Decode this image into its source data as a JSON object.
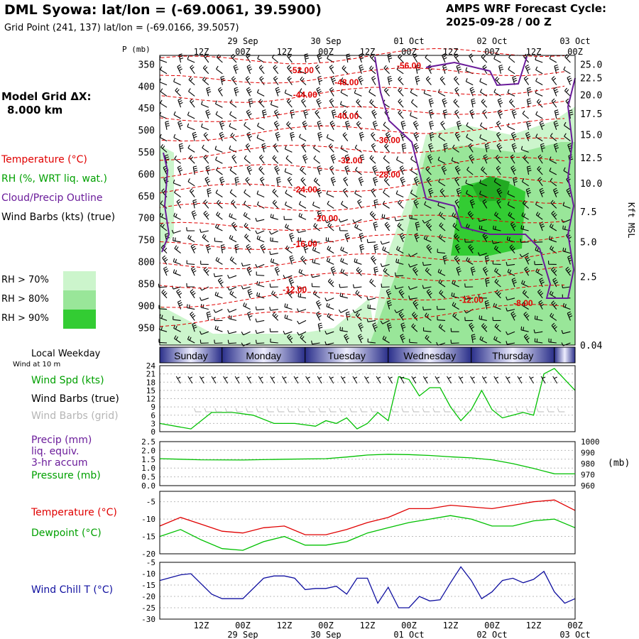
{
  "header": {
    "title": "DML Syowa:  lat/lon = (-69.0061, 39.5900)",
    "grid_point": "Grid Point (241, 137) lat/lon = (-69.0166, 39.5057)",
    "cycle_line1": "AMPS WRF Forecast Cycle:",
    "cycle_line2": "2025-09-28 / 00  Z",
    "model_grid_line1": "Model Grid ΔX:",
    "model_grid_line2": "8.000 km"
  },
  "legend": {
    "temperature": "Temperature (°C)",
    "rh": "RH (%, WRT liq. wat.)",
    "cloud": "Cloud/Precip Outline",
    "wind": "Wind Barbs (kts) (true)",
    "rh70": "RH > 70%",
    "rh80": "RH > 80%",
    "rh90": "RH > 90%",
    "local_weekday": "Local Weekday",
    "wind_at_10m": "Wind at 10 m",
    "wind_spd": "Wind Spd (kts)",
    "wind_barbs_true": "Wind Barbs (true)",
    "wind_barbs_grid": "Wind Barbs (grid)",
    "precip1": "Precip (mm)",
    "precip2": "liq. equiv.",
    "precip3": "3-hr accum",
    "pressure": "Pressure (mb)",
    "sfc_temp": "Temperature (°C)",
    "dewpoint": "Dewpoint (°C)",
    "wind_chill": "Wind Chill T (°C)"
  },
  "colors": {
    "temperature": "#e00000",
    "rh_label": "#00a000",
    "cloud": "#6a1b9a",
    "rh70": "#ccf5cc",
    "rh80": "#99e699",
    "rh90": "#33cc33",
    "series_green": "#00c000",
    "series_red": "#e00000",
    "series_blue": "#1010a0",
    "weekday_band": "#2a2f8a"
  },
  "time_axis": {
    "tick_labels": [
      "12Z",
      "00Z",
      "12Z",
      "00Z",
      "12Z",
      "00Z",
      "12Z",
      "00Z",
      "12Z",
      "00Z"
    ],
    "tick_hours": [
      12,
      24,
      36,
      48,
      60,
      72,
      84,
      96,
      108,
      120
    ],
    "date_labels": [
      {
        "text": "29 Sep",
        "hour": 24
      },
      {
        "text": "30 Sep",
        "hour": 48
      },
      {
        "text": "01 Oct",
        "hour": 72
      },
      {
        "text": "02 Oct",
        "hour": 96
      },
      {
        "text": "03 Oct",
        "hour": 120
      }
    ],
    "range": [
      0,
      120
    ]
  },
  "weekdays": [
    {
      "name": "Sunday",
      "start": 0,
      "end": 18
    },
    {
      "name": "Monday",
      "start": 18,
      "end": 42
    },
    {
      "name": "Tuesday",
      "start": 42,
      "end": 66
    },
    {
      "name": "Wednesday",
      "start": 66,
      "end": 90
    },
    {
      "name": "Thursday",
      "start": 90,
      "end": 114
    }
  ],
  "chart_data": [
    {
      "type": "heatmap",
      "title": "",
      "ylabel": "P (mb)",
      "y2label": "Kft MSL",
      "pressure_ticks": [
        350,
        400,
        450,
        500,
        550,
        600,
        650,
        700,
        750,
        800,
        850,
        900,
        950
      ],
      "ylim": [
        330,
        990
      ],
      "height_ticks": [
        {
          "label": "25.0",
          "p": 350
        },
        {
          "label": "22.5",
          "p": 381
        },
        {
          "label": "20.0",
          "p": 420
        },
        {
          "label": "17.5",
          "p": 463
        },
        {
          "label": "15.0",
          "p": 510
        },
        {
          "label": "12.5",
          "p": 563
        },
        {
          "label": "10.0",
          "p": 621
        },
        {
          "label": "7.5",
          "p": 686
        },
        {
          "label": "5.0",
          "p": 755
        },
        {
          "label": "2.5",
          "p": 834
        },
        {
          "label": "0.04",
          "p": 990
        }
      ],
      "temperature_labels": [
        {
          "text": "-56.00",
          "hour": 72,
          "p": 352
        },
        {
          "text": "-52.00",
          "hour": 41,
          "p": 362
        },
        {
          "text": "-48.00",
          "hour": 54,
          "p": 390
        },
        {
          "text": "-44.00",
          "hour": 42,
          "p": 418
        },
        {
          "text": "-40.00",
          "hour": 54,
          "p": 467
        },
        {
          "text": "-36.00",
          "hour": 66,
          "p": 522
        },
        {
          "text": "-32.00",
          "hour": 55,
          "p": 568
        },
        {
          "text": "-28.00",
          "hour": 66,
          "p": 600
        },
        {
          "text": "-24.00",
          "hour": 42,
          "p": 634
        },
        {
          "text": "-20.00",
          "hour": 48,
          "p": 700
        },
        {
          "text": "-16.00",
          "hour": 42,
          "p": 758
        },
        {
          "text": "-12.00",
          "hour": 39,
          "p": 862
        },
        {
          "text": "-12.00",
          "hour": 90,
          "p": 886
        },
        {
          "text": "-8.00",
          "hour": 105,
          "p": 893
        }
      ]
    },
    {
      "type": "line",
      "title": "",
      "ylabel": "Wind Spd (kts)",
      "ylim": [
        0,
        24
      ],
      "yticks": [
        0,
        3,
        6,
        9,
        12,
        15,
        18,
        21,
        24
      ],
      "x": [
        0,
        9,
        15,
        21,
        27,
        33,
        39,
        45,
        48,
        51,
        54,
        57,
        60,
        63,
        66,
        69,
        72,
        75,
        78,
        81,
        84,
        87,
        90,
        93,
        96,
        99,
        102,
        105,
        108,
        111,
        114,
        117,
        120
      ],
      "series": [
        {
          "name": "Wind Spd (kts)",
          "values": [
            3,
            1,
            7,
            7,
            6,
            3,
            3,
            2,
            4,
            3,
            5,
            1,
            3,
            7,
            4,
            20,
            19,
            13,
            16,
            16,
            9,
            4,
            8,
            15,
            8,
            5,
            6,
            7,
            6,
            21,
            23,
            19,
            15
          ]
        }
      ]
    },
    {
      "type": "line",
      "title": "",
      "ylabel": "Pressure (mb)",
      "ylim": [
        0,
        2.5
      ],
      "yticks": [
        0.0,
        0.5,
        1.0,
        1.5,
        2.0,
        2.5
      ],
      "y2lim": [
        960,
        1000
      ],
      "y2ticks": [
        960,
        970,
        980,
        990,
        1000
      ],
      "x": [
        0,
        12,
        24,
        36,
        48,
        54,
        60,
        66,
        72,
        78,
        84,
        90,
        96,
        102,
        108,
        114,
        120
      ],
      "series": [
        {
          "name": "Pressure (mb)",
          "values": [
            984.5,
            983.5,
            983.3,
            984,
            984.5,
            986,
            987.8,
            988.5,
            988.2,
            987.4,
            986.2,
            985.2,
            983.5,
            980,
            975.6,
            970.8,
            970.7
          ]
        }
      ]
    },
    {
      "type": "line",
      "title": "",
      "ylim": [
        -20,
        -2
      ],
      "yticks": [
        -5,
        -10,
        -15,
        -20
      ],
      "x": [
        0,
        6,
        12,
        18,
        24,
        30,
        36,
        42,
        48,
        54,
        60,
        66,
        72,
        78,
        84,
        90,
        96,
        102,
        108,
        114,
        120
      ],
      "series": [
        {
          "name": "Temperature (°C)",
          "values": [
            -12,
            -9.5,
            -11.5,
            -13.5,
            -14,
            -12.5,
            -12,
            -14.5,
            -14.5,
            -13,
            -11,
            -9.5,
            -7,
            -7,
            -6,
            -6.5,
            -7,
            -6,
            -5,
            -4.5,
            -7.5
          ]
        },
        {
          "name": "Dewpoint (°C)",
          "values": [
            -15,
            -13,
            -16,
            -18.5,
            -19,
            -16.5,
            -15,
            -17.5,
            -17.5,
            -16.5,
            -14,
            -12.5,
            -11,
            -10,
            -9,
            -10,
            -12,
            -12,
            -10.5,
            -10,
            -12.5
          ]
        }
      ]
    },
    {
      "type": "line",
      "title": "",
      "ylim": [
        -30,
        -5
      ],
      "yticks": [
        -5,
        -10,
        -15,
        -20,
        -25,
        -30
      ],
      "x": [
        0,
        6,
        9,
        15,
        18,
        24,
        30,
        33,
        36,
        39,
        42,
        45,
        48,
        51,
        54,
        57,
        60,
        63,
        66,
        69,
        72,
        75,
        78,
        81,
        84,
        87,
        90,
        93,
        96,
        99,
        102,
        105,
        108,
        111,
        114,
        117,
        120
      ],
      "series": [
        {
          "name": "Wind Chill T (°C)",
          "values": [
            -13,
            -10.5,
            -10,
            -19,
            -21,
            -21,
            -12,
            -11,
            -11,
            -12,
            -17,
            -16.5,
            -16.5,
            -15.5,
            -19,
            -12,
            -12,
            -23,
            -16,
            -25,
            -25,
            -20,
            -22,
            -21.5,
            -14,
            -7,
            -13,
            -21,
            -18,
            -13,
            -12,
            -14,
            -12.5,
            -9,
            -18,
            -23,
            -21
          ]
        }
      ]
    }
  ]
}
